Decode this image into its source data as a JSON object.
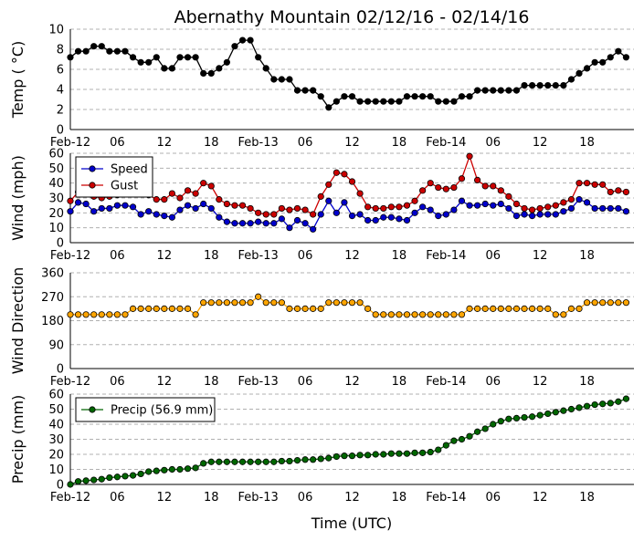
{
  "chart_data": {
    "title": "Abernathy Mountain 02/12/16 - 02/14/16",
    "xlabel": "Time (UTC)",
    "x_tick_labels": [
      "Feb-12",
      "06",
      "12",
      "18",
      "Feb-13",
      "06",
      "12",
      "18",
      "Feb-14",
      "06",
      "12",
      "18"
    ],
    "x_tick_hours": [
      0,
      6,
      12,
      18,
      24,
      30,
      36,
      42,
      48,
      54,
      60,
      66
    ],
    "x_range_hours": [
      0,
      72
    ],
    "x_hours": [
      0,
      1,
      2,
      3,
      4,
      5,
      6,
      7,
      8,
      9,
      10,
      11,
      12,
      13,
      14,
      15,
      16,
      17,
      18,
      19,
      20,
      21,
      22,
      23,
      24,
      25,
      26,
      27,
      28,
      29,
      30,
      31,
      32,
      33,
      34,
      35,
      36,
      37,
      38,
      39,
      40,
      41,
      42,
      43,
      44,
      45,
      46,
      47,
      48,
      49,
      50,
      51,
      52,
      53,
      54,
      55,
      56,
      57,
      58,
      59,
      60,
      61,
      62,
      63,
      64,
      65,
      66,
      67,
      68,
      69,
      70,
      71
    ],
    "panels": [
      {
        "type": "line",
        "ylabel": "Temp ( °C)",
        "ylim": [
          0,
          10
        ],
        "yticks": [
          0,
          2,
          4,
          6,
          8,
          10
        ],
        "legend": null,
        "series": [
          {
            "name": "Temp",
            "color": "#000000",
            "values": [
              7.2,
              7.8,
              7.8,
              8.3,
              8.3,
              7.8,
              7.8,
              7.8,
              7.2,
              6.7,
              6.7,
              7.2,
              6.1,
              6.1,
              7.2,
              7.2,
              7.2,
              5.6,
              5.6,
              6.1,
              6.7,
              8.3,
              8.9,
              8.9,
              7.2,
              6.1,
              5.0,
              5.0,
              5.0,
              3.9,
              3.9,
              3.9,
              3.3,
              2.2,
              2.8,
              3.3,
              3.3,
              2.8,
              2.8,
              2.8,
              2.8,
              2.8,
              2.8,
              3.3,
              3.3,
              3.3,
              3.3,
              2.8,
              2.8,
              2.8,
              3.3,
              3.3,
              3.9,
              3.9,
              3.9,
              3.9,
              3.9,
              3.9,
              4.4,
              4.4,
              4.4,
              4.4,
              4.4,
              4.4,
              5.0,
              5.6,
              6.1,
              6.7,
              6.7,
              7.2,
              7.8,
              7.2
            ]
          }
        ]
      },
      {
        "type": "line",
        "ylabel": "Wind (mph)",
        "ylim": [
          0,
          60
        ],
        "yticks": [
          0,
          10,
          20,
          30,
          40,
          50,
          60
        ],
        "legend": "top-left",
        "series": [
          {
            "name": "Speed",
            "color": "#0000cc",
            "values": [
              21,
              27,
              26,
              21,
              23,
              23,
              25,
              25,
              24,
              19,
              21,
              19,
              18,
              17,
              22,
              25,
              23,
              26,
              23,
              17,
              14,
              13,
              13,
              13,
              14,
              13,
              13,
              16,
              10,
              15,
              13,
              9,
              19,
              28,
              20,
              27,
              18,
              19,
              15,
              15,
              17,
              17,
              16,
              15,
              20,
              24,
              22,
              18,
              19,
              22,
              28,
              25,
              25,
              26,
              25,
              26,
              23,
              18,
              19,
              18,
              19,
              19,
              19,
              21,
              23,
              29,
              27,
              23,
              23,
              23,
              23,
              21
            ]
          },
          {
            "name": "Gust",
            "color": "#cc0000",
            "values": [
              28,
              34,
              35,
              31,
              30,
              31,
              32,
              35,
              37,
              35,
              32,
              29,
              29,
              33,
              30,
              35,
              33,
              40,
              38,
              29,
              26,
              25,
              25,
              23,
              20,
              19,
              19,
              23,
              22,
              23,
              22,
              19,
              31,
              39,
              47,
              46,
              41,
              33,
              24,
              23,
              23,
              24,
              24,
              25,
              28,
              35,
              40,
              37,
              36,
              37,
              43,
              58,
              42,
              38,
              38,
              35,
              31,
              26,
              23,
              22,
              23,
              24,
              25,
              27,
              29,
              40,
              40,
              39,
              39,
              34,
              35,
              34
            ]
          }
        ]
      },
      {
        "type": "line",
        "ylabel": "Wind Direction",
        "ylim": [
          0,
          360
        ],
        "yticks": [
          0,
          90,
          180,
          270,
          360
        ],
        "legend": null,
        "series": [
          {
            "name": "Direction",
            "color": "#ffa500",
            "values": [
              203,
              203,
              203,
              203,
              203,
              203,
              203,
              203,
              225,
              225,
              225,
              225,
              225,
              225,
              225,
              225,
              203,
              248,
              248,
              248,
              248,
              248,
              248,
              248,
              270,
              248,
              248,
              248,
              225,
              225,
              225,
              225,
              225,
              248,
              248,
              248,
              248,
              248,
              225,
              203,
              203,
              203,
              203,
              203,
              203,
              203,
              203,
              203,
              203,
              203,
              203,
              225,
              225,
              225,
              225,
              225,
              225,
              225,
              225,
              225,
              225,
              225,
              203,
              203,
              225,
              225,
              248,
              248,
              248,
              248,
              248,
              248
            ]
          }
        ]
      },
      {
        "type": "line",
        "ylabel": "Precip (mm)",
        "ylim": [
          0,
          60
        ],
        "yticks": [
          0,
          10,
          20,
          30,
          40,
          50,
          60
        ],
        "legend": "top-left",
        "series": [
          {
            "name": "Precip (56.9 mm)",
            "color": "#006600",
            "values": [
              0,
              2,
              2.5,
              3,
              3.5,
              4.5,
              5,
              5.5,
              6,
              7,
              8.5,
              9,
              9.5,
              10,
              10,
              10.5,
              11,
              14,
              15,
              15,
              15,
              15,
              15,
              15,
              15,
              15,
              15,
              15.5,
              15.5,
              16,
              16.5,
              16.5,
              17,
              17.5,
              18.5,
              19,
              19,
              19.5,
              19.5,
              20,
              20,
              20.5,
              20.5,
              20.5,
              21,
              21,
              21.5,
              23,
              26,
              29,
              30,
              32,
              35,
              37,
              40,
              42,
              43.5,
              44,
              44.5,
              45,
              46,
              47,
              48,
              49,
              50,
              51,
              52,
              53,
              53.5,
              54,
              55,
              56.9
            ]
          }
        ]
      }
    ]
  }
}
